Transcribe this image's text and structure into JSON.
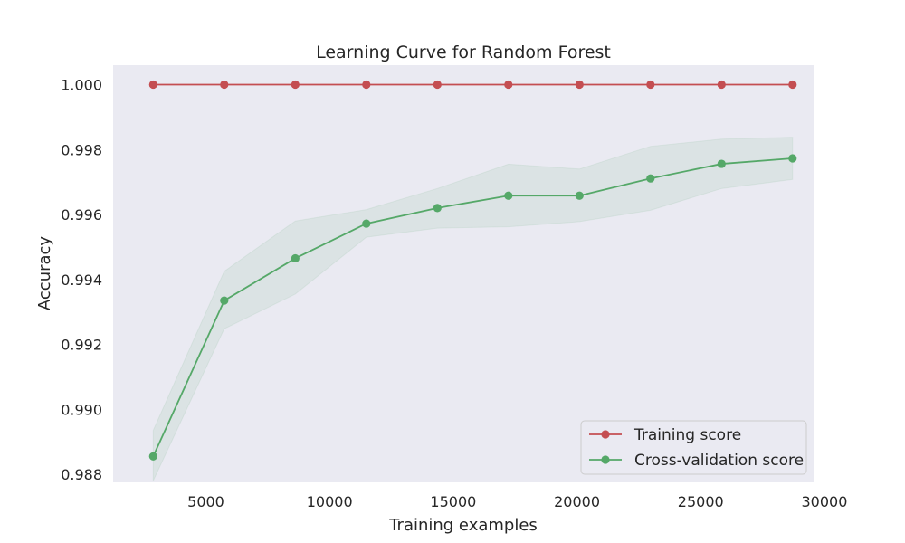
{
  "chart_data": {
    "type": "line",
    "title": "Learning Curve for Random Forest",
    "xlabel": "Training examples",
    "ylabel": "Accuracy",
    "xlim": [
      1250,
      29600
    ],
    "ylim": [
      0.98775,
      1.0006
    ],
    "xticks": [
      {
        "value": 5000,
        "label": "5000"
      },
      {
        "value": 10000,
        "label": "10000"
      },
      {
        "value": 15000,
        "label": "15000"
      },
      {
        "value": 20000,
        "label": "20000"
      },
      {
        "value": 25000,
        "label": "25000"
      },
      {
        "value": 30000,
        "label": "30000"
      }
    ],
    "yticks": [
      {
        "value": 0.988,
        "label": "0.988"
      },
      {
        "value": 0.99,
        "label": "0.990"
      },
      {
        "value": 0.992,
        "label": "0.992"
      },
      {
        "value": 0.994,
        "label": "0.994"
      },
      {
        "value": 0.996,
        "label": "0.996"
      },
      {
        "value": 0.998,
        "label": "0.998"
      },
      {
        "value": 1.0,
        "label": "1.000"
      }
    ],
    "x": [
      2871,
      5742,
      8614,
      11485,
      14357,
      17228,
      20100,
      22971,
      25843,
      28714
    ],
    "series": [
      {
        "name": "Training score",
        "color": "#c44e52",
        "values": [
          1.0,
          1.0,
          1.0,
          1.0,
          1.0,
          1.0,
          1.0,
          1.0,
          1.0,
          1.0
        ],
        "band_low": [
          1.0,
          1.0,
          1.0,
          1.0,
          1.0,
          1.0,
          1.0,
          1.0,
          1.0,
          1.0
        ],
        "band_high": [
          1.0,
          1.0,
          1.0,
          1.0,
          1.0,
          1.0,
          1.0,
          1.0,
          1.0,
          1.0
        ]
      },
      {
        "name": "Cross-validation score",
        "color": "#55a868",
        "values": [
          0.98855,
          0.99335,
          0.99465,
          0.99572,
          0.9962,
          0.99658,
          0.99658,
          0.99711,
          0.99756,
          0.99773
        ],
        "band_low": [
          0.9878,
          0.99248,
          0.99355,
          0.9953,
          0.99558,
          0.99562,
          0.99578,
          0.99613,
          0.9968,
          0.99708
        ],
        "band_high": [
          0.98935,
          0.99425,
          0.9958,
          0.99615,
          0.9968,
          0.99755,
          0.9974,
          0.9981,
          0.99832,
          0.99838
        ]
      }
    ],
    "grid": false,
    "legend": "lower-right",
    "background": "#eaeaf2"
  }
}
